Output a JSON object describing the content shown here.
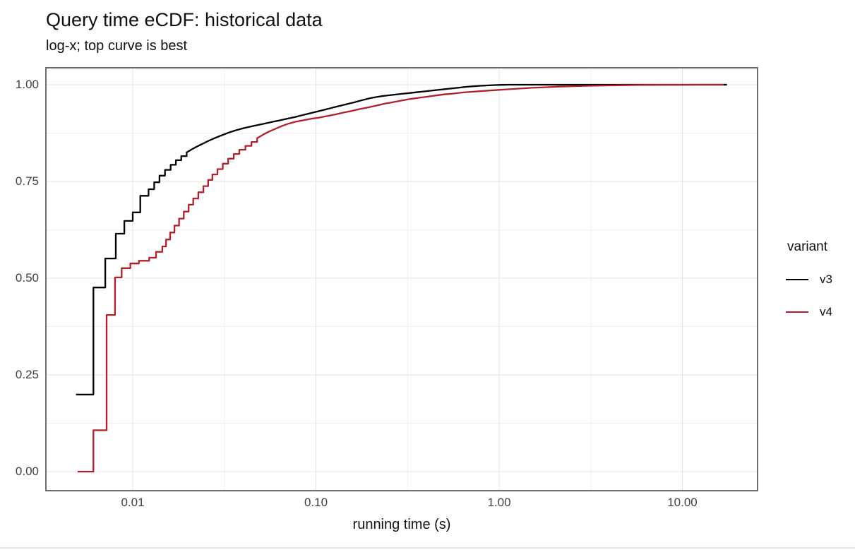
{
  "chart_data": {
    "type": "line",
    "subtype": "ecdf-step",
    "title": "Query time eCDF: historical data",
    "subtitle": "log-x; top curve is best",
    "xlabel": "running time (s)",
    "ylabel": "",
    "x_scale": "log10",
    "xlim": [
      0.00336,
      25.7
    ],
    "ylim": [
      0.0,
      1.0
    ],
    "grid": "major-and-minor",
    "x_axis": {
      "tick_values": [
        0.01,
        0.1,
        1,
        10
      ],
      "tick_labels": [
        "0.01",
        "0.10",
        "1.00",
        "10.00"
      ],
      "minor_tick_values": [
        0.0316227766,
        0.316227766,
        3.16227766
      ]
    },
    "y_axis": {
      "tick_values": [
        0.0,
        0.25,
        0.5,
        0.75,
        1.0
      ],
      "tick_labels": [
        "0.00",
        "0.25",
        "0.50",
        "0.75",
        "1.00"
      ],
      "minor_tick_values": [
        0.125,
        0.375,
        0.625,
        0.875
      ]
    },
    "legend": {
      "title": "variant",
      "position": "right",
      "items": [
        {
          "label": "v3",
          "color": "#000000"
        },
        {
          "label": "v4",
          "color": "#B0202A"
        }
      ]
    },
    "colors": {
      "v3": "#000000",
      "v4": "#B0202A",
      "grid_major": "#e3e3e3",
      "grid_minor": "#f0f0f0",
      "panel_border": "#6f6f6f",
      "tick_text": "#404040",
      "title_text": "#111111"
    },
    "series": [
      {
        "name": "v3",
        "color": "#000000",
        "points": [
          [
            0.0049,
            0.199
          ],
          [
            0.0061,
            0.199
          ],
          [
            0.0061,
            0.476
          ],
          [
            0.00708,
            0.476
          ],
          [
            0.00708,
            0.551
          ],
          [
            0.00808,
            0.551
          ],
          [
            0.00808,
            0.615
          ],
          [
            0.009,
            0.615
          ],
          [
            0.009,
            0.648
          ],
          [
            0.01,
            0.648
          ],
          [
            0.01,
            0.67
          ],
          [
            0.011,
            0.67
          ],
          [
            0.011,
            0.713
          ],
          [
            0.0122,
            0.713
          ],
          [
            0.0122,
            0.73
          ],
          [
            0.0131,
            0.748
          ],
          [
            0.014,
            0.765
          ],
          [
            0.015,
            0.78
          ],
          [
            0.0161,
            0.793
          ],
          [
            0.0172,
            0.805
          ],
          [
            0.0184,
            0.8155
          ],
          [
            0.0197,
            0.825
          ],
          [
            0.0211,
            0.8335
          ],
          [
            0.0226,
            0.841
          ],
          [
            0.0242,
            0.848
          ],
          [
            0.0259,
            0.855
          ],
          [
            0.0277,
            0.861
          ],
          [
            0.0297,
            0.867
          ],
          [
            0.0318,
            0.8725
          ],
          [
            0.034,
            0.8775
          ],
          [
            0.0364,
            0.882
          ],
          [
            0.039,
            0.886
          ],
          [
            0.0417,
            0.8895
          ],
          [
            0.0447,
            0.8925
          ],
          [
            0.0478,
            0.8955
          ],
          [
            0.0512,
            0.8985
          ],
          [
            0.0548,
            0.9015
          ],
          [
            0.0587,
            0.9045
          ],
          [
            0.0628,
            0.9075
          ],
          [
            0.0672,
            0.9105
          ],
          [
            0.0719,
            0.9135
          ],
          [
            0.077,
            0.9165
          ],
          [
            0.0824,
            0.92
          ],
          [
            0.0882,
            0.9235
          ],
          [
            0.0944,
            0.927
          ],
          [
            0.101,
            0.9305
          ],
          [
            0.108,
            0.934
          ],
          [
            0.116,
            0.9375
          ],
          [
            0.124,
            0.941
          ],
          [
            0.133,
            0.9445
          ],
          [
            0.142,
            0.948
          ],
          [
            0.152,
            0.9515
          ],
          [
            0.163,
            0.955
          ],
          [
            0.174,
            0.9585
          ],
          [
            0.186,
            0.962
          ],
          [
            0.199,
            0.9655
          ],
          [
            0.213,
            0.968
          ],
          [
            0.228,
            0.9705
          ],
          [
            0.247,
            0.9725
          ],
          [
            0.27,
            0.9745
          ],
          [
            0.295,
            0.9765
          ],
          [
            0.323,
            0.9785
          ],
          [
            0.353,
            0.9805
          ],
          [
            0.386,
            0.9825
          ],
          [
            0.422,
            0.9845
          ],
          [
            0.462,
            0.9865
          ],
          [
            0.505,
            0.9885
          ],
          [
            0.552,
            0.9905
          ],
          [
            0.604,
            0.9925
          ],
          [
            0.661,
            0.9945
          ],
          [
            0.723,
            0.996
          ],
          [
            0.791,
            0.9972
          ],
          [
            0.865,
            0.9982
          ],
          [
            0.946,
            0.999
          ],
          [
            1.035,
            0.9996
          ],
          [
            1.132,
            1.0
          ],
          [
            17.5,
            1.0
          ]
        ]
      },
      {
        "name": "v4",
        "color": "#B0202A",
        "points": [
          [
            0.005,
            0.0
          ],
          [
            0.0061,
            0.0
          ],
          [
            0.0061,
            0.107
          ],
          [
            0.0072,
            0.107
          ],
          [
            0.0072,
            0.405
          ],
          [
            0.008,
            0.405
          ],
          [
            0.008,
            0.502
          ],
          [
            0.0087,
            0.502
          ],
          [
            0.0087,
            0.526
          ],
          [
            0.0097,
            0.526
          ],
          [
            0.0097,
            0.538
          ],
          [
            0.0108,
            0.538
          ],
          [
            0.0108,
            0.545
          ],
          [
            0.0123,
            0.545
          ],
          [
            0.0123,
            0.553
          ],
          [
            0.0134,
            0.553
          ],
          [
            0.0134,
            0.568
          ],
          [
            0.0145,
            0.568
          ],
          [
            0.0145,
            0.582
          ],
          [
            0.0152,
            0.6
          ],
          [
            0.016,
            0.618
          ],
          [
            0.0169,
            0.636
          ],
          [
            0.0179,
            0.654
          ],
          [
            0.019,
            0.672
          ],
          [
            0.0202,
            0.69
          ],
          [
            0.0214,
            0.706
          ],
          [
            0.0228,
            0.722
          ],
          [
            0.0243,
            0.738
          ],
          [
            0.0258,
            0.754
          ],
          [
            0.0272,
            0.768
          ],
          [
            0.029,
            0.782
          ],
          [
            0.031,
            0.796
          ],
          [
            0.0332,
            0.809
          ],
          [
            0.0356,
            0.821
          ],
          [
            0.0382,
            0.832
          ],
          [
            0.0412,
            0.842
          ],
          [
            0.0445,
            0.852
          ],
          [
            0.0478,
            0.862
          ],
          [
            0.0515,
            0.871
          ],
          [
            0.0555,
            0.879
          ],
          [
            0.06,
            0.886
          ],
          [
            0.065,
            0.893
          ],
          [
            0.0705,
            0.899
          ],
          [
            0.077,
            0.904
          ],
          [
            0.085,
            0.908
          ],
          [
            0.094,
            0.912
          ],
          [
            0.104,
            0.915
          ],
          [
            0.115,
            0.919
          ],
          [
            0.127,
            0.923
          ],
          [
            0.141,
            0.928
          ],
          [
            0.156,
            0.932
          ],
          [
            0.173,
            0.937
          ],
          [
            0.192,
            0.941
          ],
          [
            0.213,
            0.946
          ],
          [
            0.237,
            0.951
          ],
          [
            0.263,
            0.955
          ],
          [
            0.292,
            0.959
          ],
          [
            0.325,
            0.963
          ],
          [
            0.362,
            0.966
          ],
          [
            0.403,
            0.969
          ],
          [
            0.449,
            0.972
          ],
          [
            0.5,
            0.975
          ],
          [
            0.56,
            0.977
          ],
          [
            0.63,
            0.98
          ],
          [
            0.72,
            0.982
          ],
          [
            0.82,
            0.984
          ],
          [
            0.95,
            0.986
          ],
          [
            1.1,
            0.988
          ],
          [
            1.28,
            0.99
          ],
          [
            1.5,
            0.992
          ],
          [
            1.78,
            0.9935
          ],
          [
            2.12,
            0.995
          ],
          [
            2.55,
            0.9962
          ],
          [
            3.1,
            0.9972
          ],
          [
            3.8,
            0.998
          ],
          [
            4.7,
            0.9987
          ],
          [
            5.9,
            0.9992
          ],
          [
            7.5,
            0.9996
          ],
          [
            9.6,
            0.9999
          ],
          [
            12.5,
            1.0
          ],
          [
            16.8,
            1.0
          ]
        ]
      }
    ]
  }
}
